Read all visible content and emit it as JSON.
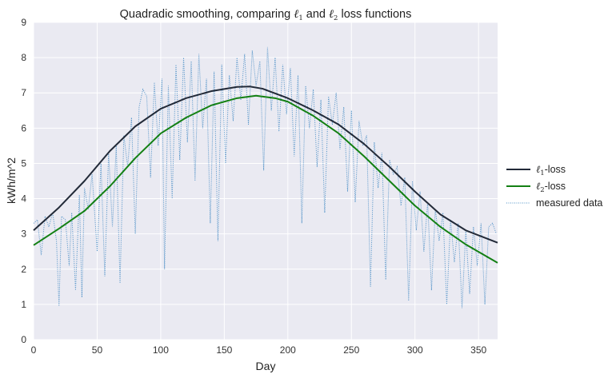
{
  "chart_data": {
    "type": "line",
    "title": {
      "prefix": "Quadradic smoothing, comparing ",
      "middle": " and ",
      "suffix": " loss functions",
      "symbol": "ℓ",
      "sub1": "1",
      "sub2": "2"
    },
    "xlabel": "Day",
    "ylabel": "kWh/m^2",
    "xlim": [
      0,
      365
    ],
    "ylim": [
      0,
      9
    ],
    "xticks": [
      0,
      50,
      100,
      150,
      200,
      250,
      300,
      350
    ],
    "yticks": [
      0,
      1,
      2,
      3,
      4,
      5,
      6,
      7,
      8,
      9
    ],
    "grid": true,
    "legend_position": "outside-right",
    "colors": {
      "background": "#eaeaf2",
      "grid": "#ffffff",
      "l1": "#222a38",
      "l2": "#138013",
      "measured": "#4c8fc6"
    },
    "series": [
      {
        "key": "l1",
        "name_symbol": "ℓ",
        "name_sub": "1",
        "name_suffix": "-loss",
        "style": "solid",
        "x": [
          0,
          20,
          40,
          60,
          80,
          100,
          120,
          140,
          160,
          170,
          180,
          200,
          220,
          240,
          260,
          280,
          300,
          320,
          340,
          365
        ],
        "y": [
          3.1,
          3.75,
          4.5,
          5.35,
          6.05,
          6.55,
          6.85,
          7.05,
          7.17,
          7.18,
          7.12,
          6.85,
          6.5,
          6.1,
          5.55,
          4.9,
          4.2,
          3.55,
          3.1,
          2.75
        ]
      },
      {
        "key": "l2",
        "name_symbol": "ℓ",
        "name_sub": "2",
        "name_suffix": "-loss",
        "style": "solid",
        "x": [
          0,
          20,
          40,
          60,
          80,
          100,
          120,
          140,
          160,
          175,
          190,
          200,
          220,
          240,
          260,
          280,
          300,
          320,
          340,
          365
        ],
        "y": [
          2.68,
          3.15,
          3.65,
          4.35,
          5.15,
          5.85,
          6.3,
          6.65,
          6.85,
          6.92,
          6.85,
          6.75,
          6.35,
          5.85,
          5.2,
          4.5,
          3.8,
          3.2,
          2.7,
          2.18
        ]
      },
      {
        "key": "measured",
        "name": "measured data",
        "style": "dotted",
        "x": [
          0,
          3,
          6,
          9,
          12,
          15,
          18,
          20,
          22,
          25,
          28,
          30,
          33,
          36,
          38,
          40,
          43,
          46,
          50,
          53,
          56,
          59,
          62,
          65,
          68,
          71,
          74,
          77,
          80,
          83,
          86,
          89,
          92,
          95,
          98,
          101,
          103,
          106,
          109,
          112,
          115,
          118,
          121,
          124,
          127,
          130,
          133,
          136,
          139,
          142,
          145,
          148,
          151,
          154,
          157,
          160,
          163,
          166,
          169,
          172,
          175,
          178,
          181,
          184,
          187,
          190,
          193,
          196,
          199,
          202,
          205,
          208,
          211,
          214,
          217,
          220,
          223,
          226,
          229,
          232,
          235,
          238,
          241,
          244,
          247,
          250,
          253,
          256,
          259,
          262,
          265,
          268,
          271,
          274,
          277,
          280,
          283,
          286,
          289,
          292,
          295,
          298,
          301,
          304,
          307,
          310,
          313,
          316,
          319,
          322,
          325,
          328,
          331,
          334,
          337,
          340,
          343,
          346,
          349,
          352,
          355,
          358,
          361,
          364
        ],
        "y": [
          3.3,
          3.4,
          2.4,
          3.5,
          3.2,
          3.6,
          2.8,
          0.95,
          3.5,
          3.4,
          2.1,
          3.6,
          1.4,
          4.1,
          1.2,
          4.3,
          3.7,
          4.7,
          2.5,
          5.0,
          1.8,
          5.3,
          3.2,
          5.5,
          1.6,
          5.8,
          4.9,
          6.3,
          3.0,
          6.6,
          7.1,
          6.9,
          4.6,
          7.3,
          5.5,
          7.4,
          2.0,
          7.2,
          4.0,
          7.8,
          5.1,
          8.0,
          5.6,
          7.9,
          4.5,
          8.1,
          6.0,
          7.4,
          3.3,
          7.6,
          2.8,
          7.8,
          5.0,
          7.5,
          6.2,
          8.0,
          6.8,
          8.1,
          6.1,
          8.2,
          7.2,
          7.9,
          4.8,
          8.3,
          6.5,
          8.0,
          5.9,
          7.8,
          6.4,
          7.7,
          5.2,
          7.5,
          3.3,
          7.2,
          6.0,
          7.1,
          4.9,
          6.8,
          3.6,
          6.9,
          6.1,
          7.0,
          5.4,
          6.6,
          4.2,
          6.5,
          3.9,
          6.2,
          5.5,
          5.8,
          1.5,
          5.6,
          4.3,
          5.3,
          1.7,
          5.1,
          4.7,
          4.9,
          3.8,
          4.6,
          1.1,
          4.5,
          3.1,
          4.2,
          2.5,
          3.9,
          1.4,
          3.7,
          2.8,
          3.6,
          1.0,
          3.4,
          2.2,
          3.3,
          0.9,
          3.1,
          1.3,
          3.2,
          2.1,
          3.3,
          1.0,
          3.2,
          3.3,
          3.0
        ]
      }
    ]
  }
}
